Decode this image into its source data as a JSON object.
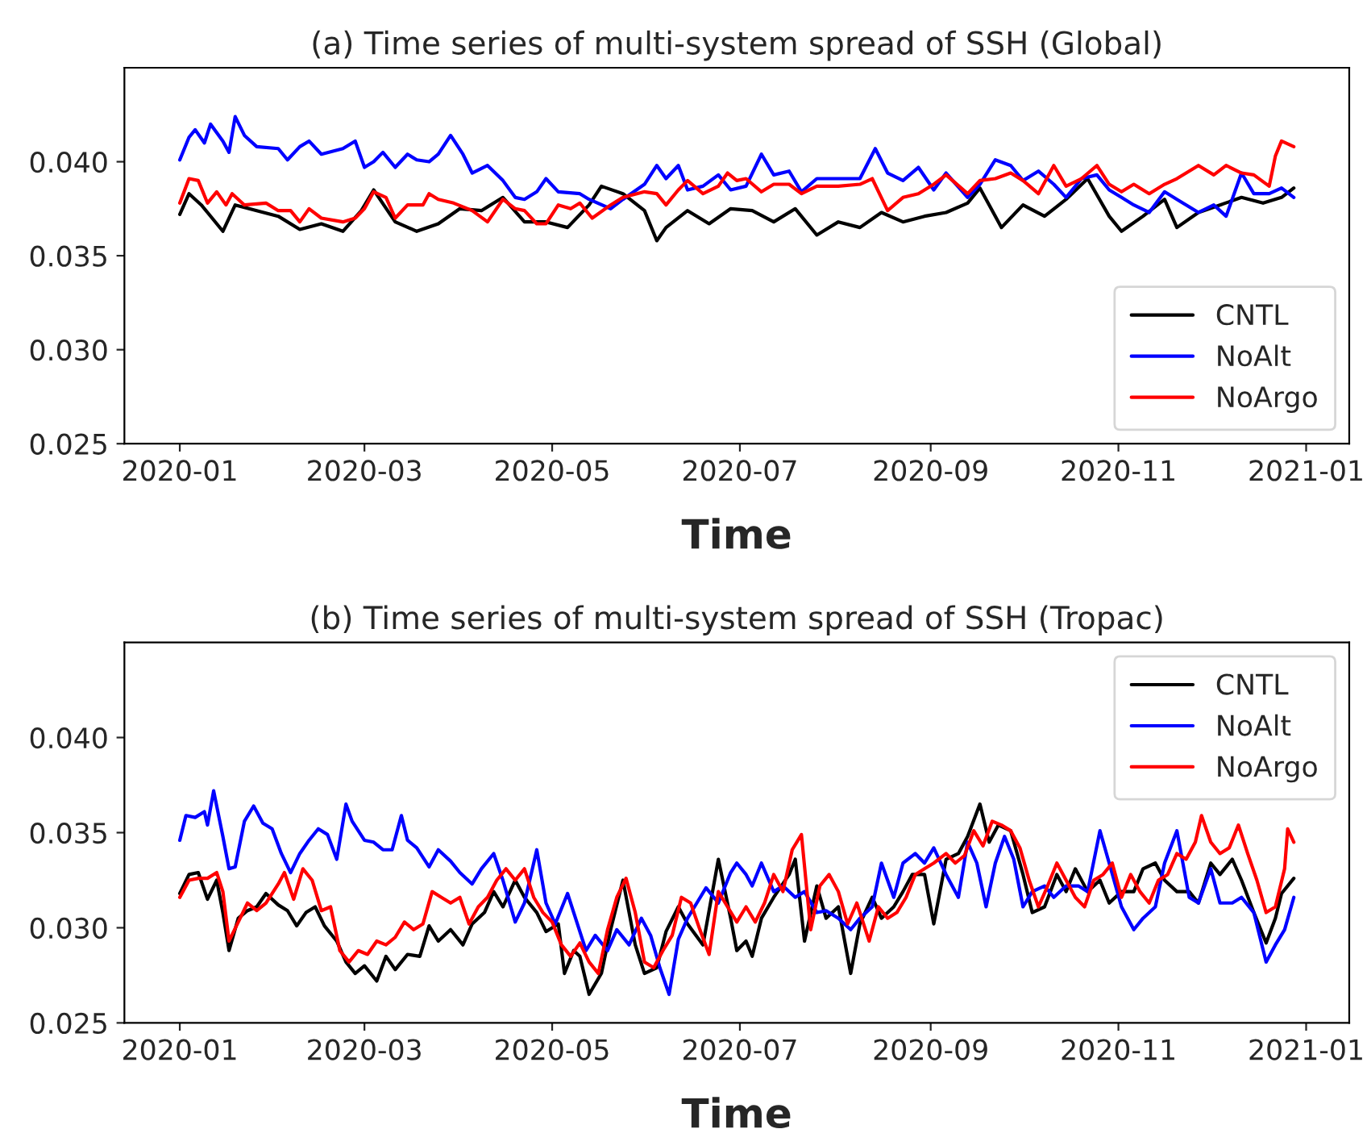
{
  "chart_data": [
    {
      "type": "line",
      "title": "(a) Time series of multi-system spread of SSH (Global)",
      "xlabel": "Time",
      "xlim": [
        "2019-12-14",
        "2021-01-15"
      ],
      "xticks": [
        "2020-01",
        "2020-03",
        "2020-05",
        "2020-07",
        "2020-09",
        "2020-11",
        "2021-01"
      ],
      "ylim": [
        0.025,
        0.045
      ],
      "yticks": [
        {
          "value": 0.025,
          "label": "0.025"
        },
        {
          "value": 0.03,
          "label": "0.030"
        },
        {
          "value": 0.035,
          "label": "0.035"
        },
        {
          "value": 0.04,
          "label": "0.040"
        }
      ],
      "legend": "lower right",
      "grid": false,
      "series": [
        {
          "name": "CNTL",
          "color": "#000000",
          "x": [
            "2020-01-01",
            "2020-01-04",
            "2020-01-08",
            "2020-01-15",
            "2020-01-19",
            "2020-01-26",
            "2020-02-02",
            "2020-02-09",
            "2020-02-16",
            "2020-02-23",
            "2020-02-29",
            "2020-03-04",
            "2020-03-11",
            "2020-03-18",
            "2020-03-25",
            "2020-04-01",
            "2020-04-08",
            "2020-04-15",
            "2020-04-22",
            "2020-04-29",
            "2020-05-06",
            "2020-05-13",
            "2020-05-17",
            "2020-05-24",
            "2020-05-31",
            "2020-06-04",
            "2020-06-07",
            "2020-06-14",
            "2020-06-21",
            "2020-06-28",
            "2020-07-05",
            "2020-07-12",
            "2020-07-19",
            "2020-07-26",
            "2020-08-02",
            "2020-08-09",
            "2020-08-16",
            "2020-08-23",
            "2020-08-30",
            "2020-09-06",
            "2020-09-13",
            "2020-09-17",
            "2020-09-24",
            "2020-10-01",
            "2020-10-08",
            "2020-10-15",
            "2020-10-22",
            "2020-10-29",
            "2020-11-02",
            "2020-11-09",
            "2020-11-16",
            "2020-11-20",
            "2020-11-27",
            "2020-12-04",
            "2020-12-11",
            "2020-12-18",
            "2020-12-24",
            "2020-12-28"
          ],
          "values": [
            0.0372,
            0.0383,
            0.0377,
            0.0363,
            0.0377,
            0.0374,
            0.0371,
            0.0364,
            0.0367,
            0.0363,
            0.0374,
            0.0385,
            0.0368,
            0.0363,
            0.0367,
            0.0375,
            0.0374,
            0.0381,
            0.0368,
            0.0368,
            0.0365,
            0.0377,
            0.0387,
            0.0383,
            0.0374,
            0.0358,
            0.0365,
            0.0374,
            0.0367,
            0.0375,
            0.0374,
            0.0368,
            0.0375,
            0.0361,
            0.0368,
            0.0365,
            0.0373,
            0.0368,
            0.0371,
            0.0373,
            0.0378,
            0.0386,
            0.0365,
            0.0377,
            0.0371,
            0.038,
            0.0391,
            0.0371,
            0.0363,
            0.0371,
            0.038,
            0.0365,
            0.0373,
            0.0377,
            0.0381,
            0.0378,
            0.0381,
            0.0386
          ]
        },
        {
          "name": "NoAlt",
          "color": "#0000ff",
          "x": [
            "2020-01-01",
            "2020-01-04",
            "2020-01-06",
            "2020-01-09",
            "2020-01-11",
            "2020-01-15",
            "2020-01-17",
            "2020-01-19",
            "2020-01-22",
            "2020-01-26",
            "2020-02-02",
            "2020-02-05",
            "2020-02-09",
            "2020-02-12",
            "2020-02-16",
            "2020-02-23",
            "2020-02-27",
            "2020-03-01",
            "2020-03-04",
            "2020-03-07",
            "2020-03-11",
            "2020-03-15",
            "2020-03-18",
            "2020-03-22",
            "2020-03-25",
            "2020-03-29",
            "2020-04-02",
            "2020-04-05",
            "2020-04-10",
            "2020-04-15",
            "2020-04-19",
            "2020-04-22",
            "2020-04-26",
            "2020-04-29",
            "2020-05-03",
            "2020-05-10",
            "2020-05-13",
            "2020-05-20",
            "2020-05-24",
            "2020-05-31",
            "2020-06-04",
            "2020-06-07",
            "2020-06-11",
            "2020-06-14",
            "2020-06-19",
            "2020-06-24",
            "2020-06-28",
            "2020-07-03",
            "2020-07-08",
            "2020-07-12",
            "2020-07-17",
            "2020-07-21",
            "2020-07-26",
            "2020-08-02",
            "2020-08-09",
            "2020-08-14",
            "2020-08-18",
            "2020-08-23",
            "2020-08-28",
            "2020-09-02",
            "2020-09-06",
            "2020-09-13",
            "2020-09-17",
            "2020-09-22",
            "2020-09-27",
            "2020-10-01",
            "2020-10-06",
            "2020-10-11",
            "2020-10-15",
            "2020-10-20",
            "2020-10-25",
            "2020-10-29",
            "2020-11-02",
            "2020-11-06",
            "2020-11-11",
            "2020-11-16",
            "2020-11-20",
            "2020-11-27",
            "2020-12-02",
            "2020-12-06",
            "2020-12-11",
            "2020-12-15",
            "2020-12-20",
            "2020-12-24",
            "2020-12-28"
          ],
          "values": [
            0.0401,
            0.0413,
            0.0417,
            0.041,
            0.042,
            0.0411,
            0.0405,
            0.0424,
            0.0414,
            0.0408,
            0.0407,
            0.0401,
            0.0408,
            0.0411,
            0.0404,
            0.0407,
            0.0411,
            0.0397,
            0.04,
            0.0405,
            0.0397,
            0.0404,
            0.0401,
            0.04,
            0.0404,
            0.0414,
            0.0404,
            0.0394,
            0.0398,
            0.039,
            0.0381,
            0.038,
            0.0384,
            0.0391,
            0.0384,
            0.0383,
            0.038,
            0.0375,
            0.038,
            0.0388,
            0.0398,
            0.0391,
            0.0398,
            0.0385,
            0.0387,
            0.0393,
            0.0385,
            0.0387,
            0.0404,
            0.0393,
            0.0395,
            0.0384,
            0.0391,
            0.0391,
            0.0391,
            0.0407,
            0.0394,
            0.039,
            0.0397,
            0.0385,
            0.0394,
            0.0381,
            0.0388,
            0.0401,
            0.0398,
            0.039,
            0.0395,
            0.0388,
            0.0381,
            0.0391,
            0.0393,
            0.0385,
            0.0381,
            0.0377,
            0.0373,
            0.0384,
            0.038,
            0.0373,
            0.0377,
            0.0371,
            0.0394,
            0.0383,
            0.0383,
            0.0386,
            0.0381
          ]
        },
        {
          "name": "NoArgo",
          "color": "#ff0000",
          "x": [
            "2020-01-01",
            "2020-01-04",
            "2020-01-07",
            "2020-01-10",
            "2020-01-13",
            "2020-01-16",
            "2020-01-18",
            "2020-01-22",
            "2020-01-29",
            "2020-02-02",
            "2020-02-06",
            "2020-02-09",
            "2020-02-12",
            "2020-02-16",
            "2020-02-23",
            "2020-02-27",
            "2020-03-01",
            "2020-03-04",
            "2020-03-08",
            "2020-03-11",
            "2020-03-15",
            "2020-03-20",
            "2020-03-22",
            "2020-03-25",
            "2020-03-30",
            "2020-04-05",
            "2020-04-10",
            "2020-04-15",
            "2020-04-19",
            "2020-04-22",
            "2020-04-26",
            "2020-04-29",
            "2020-05-03",
            "2020-05-07",
            "2020-05-10",
            "2020-05-14",
            "2020-05-20",
            "2020-05-24",
            "2020-05-31",
            "2020-06-04",
            "2020-06-07",
            "2020-06-11",
            "2020-06-14",
            "2020-06-19",
            "2020-06-24",
            "2020-06-27",
            "2020-06-30",
            "2020-07-03",
            "2020-07-08",
            "2020-07-12",
            "2020-07-17",
            "2020-07-21",
            "2020-07-26",
            "2020-08-02",
            "2020-08-09",
            "2020-08-13",
            "2020-08-18",
            "2020-08-23",
            "2020-08-28",
            "2020-09-02",
            "2020-09-06",
            "2020-09-13",
            "2020-09-17",
            "2020-09-22",
            "2020-09-27",
            "2020-10-01",
            "2020-10-06",
            "2020-10-11",
            "2020-10-15",
            "2020-10-20",
            "2020-10-25",
            "2020-10-29",
            "2020-11-02",
            "2020-11-06",
            "2020-11-11",
            "2020-11-16",
            "2020-11-20",
            "2020-11-27",
            "2020-12-02",
            "2020-12-06",
            "2020-12-11",
            "2020-12-15",
            "2020-12-20",
            "2020-12-22",
            "2020-12-24",
            "2020-12-28"
          ],
          "values": [
            0.0378,
            0.0391,
            0.039,
            0.0378,
            0.0384,
            0.0377,
            0.0383,
            0.0377,
            0.0378,
            0.0374,
            0.0374,
            0.0368,
            0.0375,
            0.037,
            0.0368,
            0.037,
            0.0375,
            0.0384,
            0.0381,
            0.037,
            0.0377,
            0.0377,
            0.0383,
            0.038,
            0.0378,
            0.0374,
            0.0368,
            0.038,
            0.0375,
            0.0374,
            0.0367,
            0.0367,
            0.0377,
            0.0375,
            0.0378,
            0.037,
            0.0377,
            0.0381,
            0.0384,
            0.0383,
            0.0377,
            0.0385,
            0.039,
            0.0383,
            0.0387,
            0.0394,
            0.039,
            0.0391,
            0.0384,
            0.0388,
            0.0388,
            0.0383,
            0.0387,
            0.0387,
            0.0388,
            0.0391,
            0.0374,
            0.0381,
            0.0383,
            0.0388,
            0.0393,
            0.0383,
            0.039,
            0.0391,
            0.0394,
            0.039,
            0.0383,
            0.0398,
            0.0387,
            0.0391,
            0.0398,
            0.0388,
            0.0384,
            0.0388,
            0.0383,
            0.0388,
            0.0391,
            0.0398,
            0.0393,
            0.0398,
            0.0394,
            0.0393,
            0.0387,
            0.0403,
            0.0411,
            0.0408
          ]
        }
      ]
    },
    {
      "type": "line",
      "title": "(b) Time series of multi-system spread of SSH (Tropac)",
      "xlabel": "Time",
      "xlim": [
        "2019-12-14",
        "2021-01-15"
      ],
      "xticks": [
        "2020-01",
        "2020-03",
        "2020-05",
        "2020-07",
        "2020-09",
        "2020-11",
        "2021-01"
      ],
      "ylim": [
        0.025,
        0.045
      ],
      "yticks": [
        {
          "value": 0.025,
          "label": "0.025"
        },
        {
          "value": 0.03,
          "label": "0.030"
        },
        {
          "value": 0.035,
          "label": "0.035"
        },
        {
          "value": 0.04,
          "label": "0.040"
        }
      ],
      "legend": "upper right",
      "grid": false,
      "series": [
        {
          "name": "CNTL",
          "color": "#000000",
          "x": [
            "2020-01-01",
            "2020-01-04",
            "2020-01-07",
            "2020-01-10",
            "2020-01-13",
            "2020-01-15",
            "2020-01-17",
            "2020-01-20",
            "2020-01-23",
            "2020-01-26",
            "2020-01-29",
            "2020-02-02",
            "2020-02-05",
            "2020-02-08",
            "2020-02-11",
            "2020-02-14",
            "2020-02-17",
            "2020-02-21",
            "2020-02-24",
            "2020-02-27",
            "2020-03-01",
            "2020-03-05",
            "2020-03-08",
            "2020-03-11",
            "2020-03-15",
            "2020-03-19",
            "2020-03-22",
            "2020-03-25",
            "2020-03-29",
            "2020-04-02",
            "2020-04-05",
            "2020-04-09",
            "2020-04-12",
            "2020-04-15",
            "2020-04-19",
            "2020-04-22",
            "2020-04-26",
            "2020-04-29",
            "2020-05-03",
            "2020-05-05",
            "2020-05-08",
            "2020-05-10",
            "2020-05-13",
            "2020-05-17",
            "2020-05-20",
            "2020-05-24",
            "2020-05-28",
            "2020-05-31",
            "2020-06-04",
            "2020-06-07",
            "2020-06-11",
            "2020-06-14",
            "2020-06-19",
            "2020-06-24",
            "2020-06-28",
            "2020-06-30",
            "2020-07-03",
            "2020-07-05",
            "2020-07-08",
            "2020-07-12",
            "2020-07-17",
            "2020-07-19",
            "2020-07-22",
            "2020-07-26",
            "2020-07-29",
            "2020-08-02",
            "2020-08-06",
            "2020-08-09",
            "2020-08-13",
            "2020-08-16",
            "2020-08-20",
            "2020-08-23",
            "2020-08-26",
            "2020-08-30",
            "2020-09-02",
            "2020-09-06",
            "2020-09-10",
            "2020-09-13",
            "2020-09-17",
            "2020-09-20",
            "2020-09-23",
            "2020-09-27",
            "2020-10-01",
            "2020-10-04",
            "2020-10-08",
            "2020-10-12",
            "2020-10-15",
            "2020-10-18",
            "2020-10-22",
            "2020-10-26",
            "2020-10-29",
            "2020-11-02",
            "2020-11-06",
            "2020-11-09",
            "2020-11-13",
            "2020-11-16",
            "2020-11-20",
            "2020-11-24",
            "2020-11-27",
            "2020-12-01",
            "2020-12-04",
            "2020-12-08",
            "2020-12-11",
            "2020-12-15",
            "2020-12-19",
            "2020-12-22",
            "2020-12-24",
            "2020-12-28"
          ],
          "values": [
            0.0318,
            0.0328,
            0.0329,
            0.0315,
            0.0325,
            0.0308,
            0.0288,
            0.0305,
            0.0309,
            0.0311,
            0.0318,
            0.0312,
            0.0309,
            0.0301,
            0.0308,
            0.0311,
            0.0301,
            0.0293,
            0.0282,
            0.0276,
            0.028,
            0.0272,
            0.0285,
            0.0278,
            0.0286,
            0.0285,
            0.0301,
            0.0293,
            0.0299,
            0.0291,
            0.0302,
            0.0308,
            0.0319,
            0.0311,
            0.0325,
            0.0316,
            0.0308,
            0.0298,
            0.0302,
            0.0276,
            0.0288,
            0.0285,
            0.0265,
            0.0276,
            0.0299,
            0.0325,
            0.0291,
            0.0276,
            0.0279,
            0.0298,
            0.0311,
            0.0302,
            0.0291,
            0.0336,
            0.0305,
            0.0288,
            0.0293,
            0.0285,
            0.0305,
            0.0316,
            0.0328,
            0.0336,
            0.0293,
            0.0322,
            0.0305,
            0.0311,
            0.0276,
            0.0302,
            0.0316,
            0.0305,
            0.0311,
            0.0319,
            0.0328,
            0.0328,
            0.0302,
            0.0336,
            0.0339,
            0.0348,
            0.0365,
            0.0345,
            0.0354,
            0.0351,
            0.0328,
            0.0308,
            0.0311,
            0.0328,
            0.0319,
            0.0331,
            0.0319,
            0.0325,
            0.0313,
            0.0319,
            0.0319,
            0.0331,
            0.0334,
            0.0325,
            0.0319,
            0.0319,
            0.0313,
            0.0334,
            0.0328,
            0.0336,
            0.0325,
            0.0308,
            0.0292,
            0.0305,
            0.0318,
            0.0326
          ]
        },
        {
          "name": "NoAlt",
          "color": "#0000ff",
          "x": [
            "2020-01-01",
            "2020-01-03",
            "2020-01-06",
            "2020-01-09",
            "2020-01-10",
            "2020-01-12",
            "2020-01-15",
            "2020-01-17",
            "2020-01-19",
            "2020-01-22",
            "2020-01-25",
            "2020-01-28",
            "2020-01-31",
            "2020-02-03",
            "2020-02-06",
            "2020-02-09",
            "2020-02-12",
            "2020-02-15",
            "2020-02-18",
            "2020-02-21",
            "2020-02-24",
            "2020-02-26",
            "2020-03-01",
            "2020-03-04",
            "2020-03-07",
            "2020-03-10",
            "2020-03-13",
            "2020-03-15",
            "2020-03-18",
            "2020-03-22",
            "2020-03-25",
            "2020-03-29",
            "2020-04-01",
            "2020-04-05",
            "2020-04-08",
            "2020-04-12",
            "2020-04-15",
            "2020-04-19",
            "2020-04-22",
            "2020-04-26",
            "2020-04-29",
            "2020-05-02",
            "2020-05-06",
            "2020-05-09",
            "2020-05-12",
            "2020-05-15",
            "2020-05-19",
            "2020-05-22",
            "2020-05-26",
            "2020-05-30",
            "2020-06-02",
            "2020-06-05",
            "2020-06-08",
            "2020-06-11",
            "2020-06-14",
            "2020-06-17",
            "2020-06-20",
            "2020-06-24",
            "2020-06-28",
            "2020-06-30",
            "2020-07-03",
            "2020-07-05",
            "2020-07-08",
            "2020-07-12",
            "2020-07-15",
            "2020-07-19",
            "2020-07-22",
            "2020-07-26",
            "2020-07-29",
            "2020-08-02",
            "2020-08-06",
            "2020-08-09",
            "2020-08-13",
            "2020-08-16",
            "2020-08-20",
            "2020-08-23",
            "2020-08-27",
            "2020-08-30",
            "2020-09-02",
            "2020-09-06",
            "2020-09-10",
            "2020-09-13",
            "2020-09-16",
            "2020-09-19",
            "2020-09-22",
            "2020-09-25",
            "2020-09-28",
            "2020-10-01",
            "2020-10-04",
            "2020-10-08",
            "2020-10-11",
            "2020-10-15",
            "2020-10-19",
            "2020-10-22",
            "2020-10-26",
            "2020-10-29",
            "2020-11-02",
            "2020-11-06",
            "2020-11-09",
            "2020-11-13",
            "2020-11-16",
            "2020-11-20",
            "2020-11-24",
            "2020-11-27",
            "2020-12-01",
            "2020-12-04",
            "2020-12-08",
            "2020-12-11",
            "2020-12-15",
            "2020-12-19",
            "2020-12-22",
            "2020-12-25",
            "2020-12-28"
          ],
          "values": [
            0.0346,
            0.0359,
            0.0358,
            0.0361,
            0.0354,
            0.0372,
            0.0348,
            0.0331,
            0.0332,
            0.0356,
            0.0364,
            0.0355,
            0.0352,
            0.0339,
            0.0329,
            0.0339,
            0.0346,
            0.0352,
            0.0349,
            0.0336,
            0.0365,
            0.0356,
            0.0346,
            0.0345,
            0.0341,
            0.0341,
            0.0359,
            0.0346,
            0.0342,
            0.0332,
            0.0341,
            0.0335,
            0.0329,
            0.0323,
            0.0331,
            0.0339,
            0.0325,
            0.0303,
            0.0313,
            0.0341,
            0.0313,
            0.0302,
            0.0318,
            0.0303,
            0.0288,
            0.0296,
            0.0288,
            0.0299,
            0.0291,
            0.0305,
            0.0296,
            0.0279,
            0.0265,
            0.0294,
            0.0305,
            0.0313,
            0.0321,
            0.0313,
            0.0329,
            0.0334,
            0.0328,
            0.0322,
            0.0334,
            0.0319,
            0.0322,
            0.0316,
            0.0319,
            0.0308,
            0.0309,
            0.0305,
            0.0299,
            0.0305,
            0.0311,
            0.0334,
            0.0316,
            0.0334,
            0.0339,
            0.0334,
            0.0342,
            0.0328,
            0.0316,
            0.0345,
            0.0334,
            0.0311,
            0.0334,
            0.0348,
            0.0336,
            0.0311,
            0.0319,
            0.0322,
            0.0316,
            0.0322,
            0.0322,
            0.0319,
            0.0351,
            0.0334,
            0.0311,
            0.0299,
            0.0305,
            0.0311,
            0.0334,
            0.0351,
            0.0316,
            0.0313,
            0.0331,
            0.0313,
            0.0313,
            0.0316,
            0.0308,
            0.0282,
            0.0291,
            0.0299,
            0.0316
          ]
        },
        {
          "name": "NoArgo",
          "color": "#ff0000",
          "x": [
            "2020-01-01",
            "2020-01-04",
            "2020-01-07",
            "2020-01-10",
            "2020-01-13",
            "2020-01-15",
            "2020-01-17",
            "2020-01-20",
            "2020-01-23",
            "2020-01-26",
            "2020-01-29",
            "2020-02-02",
            "2020-02-04",
            "2020-02-07",
            "2020-02-10",
            "2020-02-13",
            "2020-02-16",
            "2020-02-19",
            "2020-02-22",
            "2020-02-25",
            "2020-02-28",
            "2020-03-02",
            "2020-03-05",
            "2020-03-08",
            "2020-03-11",
            "2020-03-14",
            "2020-03-17",
            "2020-03-20",
            "2020-03-23",
            "2020-03-26",
            "2020-03-29",
            "2020-04-01",
            "2020-04-04",
            "2020-04-07",
            "2020-04-10",
            "2020-04-13",
            "2020-04-16",
            "2020-04-19",
            "2020-04-22",
            "2020-04-25",
            "2020-04-28",
            "2020-05-01",
            "2020-05-04",
            "2020-05-07",
            "2020-05-10",
            "2020-05-13",
            "2020-05-16",
            "2020-05-19",
            "2020-05-22",
            "2020-05-25",
            "2020-05-28",
            "2020-05-31",
            "2020-06-03",
            "2020-06-06",
            "2020-06-09",
            "2020-06-12",
            "2020-06-15",
            "2020-06-18",
            "2020-06-21",
            "2020-06-24",
            "2020-06-27",
            "2020-06-30",
            "2020-07-03",
            "2020-07-06",
            "2020-07-09",
            "2020-07-12",
            "2020-07-15",
            "2020-07-18",
            "2020-07-21",
            "2020-07-24",
            "2020-07-27",
            "2020-07-30",
            "2020-08-02",
            "2020-08-05",
            "2020-08-08",
            "2020-08-12",
            "2020-08-15",
            "2020-08-18",
            "2020-08-21",
            "2020-08-24",
            "2020-08-27",
            "2020-08-30",
            "2020-09-02",
            "2020-09-06",
            "2020-09-09",
            "2020-09-12",
            "2020-09-15",
            "2020-09-18",
            "2020-09-21",
            "2020-09-24",
            "2020-09-27",
            "2020-09-30",
            "2020-10-03",
            "2020-10-06",
            "2020-10-09",
            "2020-10-12",
            "2020-10-15",
            "2020-10-18",
            "2020-10-21",
            "2020-10-24",
            "2020-10-27",
            "2020-10-30",
            "2020-11-02",
            "2020-11-05",
            "2020-11-08",
            "2020-11-11",
            "2020-11-14",
            "2020-11-17",
            "2020-11-20",
            "2020-11-23",
            "2020-11-26",
            "2020-11-28",
            "2020-12-01",
            "2020-12-04",
            "2020-12-07",
            "2020-12-10",
            "2020-12-13",
            "2020-12-16",
            "2020-12-19",
            "2020-12-22",
            "2020-12-25",
            "2020-12-26",
            "2020-12-28"
          ],
          "values": [
            0.0316,
            0.0325,
            0.0326,
            0.0326,
            0.0329,
            0.0319,
            0.0293,
            0.0303,
            0.0313,
            0.0309,
            0.0313,
            0.0323,
            0.0329,
            0.0315,
            0.0331,
            0.0325,
            0.0309,
            0.0311,
            0.0288,
            0.0282,
            0.0288,
            0.0286,
            0.0293,
            0.0291,
            0.0295,
            0.0303,
            0.0299,
            0.0302,
            0.0319,
            0.0316,
            0.0313,
            0.0316,
            0.0302,
            0.0311,
            0.0316,
            0.0325,
            0.0331,
            0.0325,
            0.0331,
            0.0316,
            0.0308,
            0.0303,
            0.0291,
            0.0285,
            0.0292,
            0.0282,
            0.0276,
            0.0299,
            0.0316,
            0.0326,
            0.0308,
            0.0282,
            0.0279,
            0.0288,
            0.0296,
            0.0316,
            0.0313,
            0.0299,
            0.0286,
            0.0319,
            0.0311,
            0.0303,
            0.0311,
            0.0303,
            0.0313,
            0.0328,
            0.0319,
            0.0341,
            0.0349,
            0.0299,
            0.0322,
            0.0328,
            0.0319,
            0.0302,
            0.0313,
            0.0293,
            0.0311,
            0.0305,
            0.0308,
            0.0316,
            0.0328,
            0.0331,
            0.0334,
            0.0339,
            0.0334,
            0.0338,
            0.0351,
            0.0343,
            0.0356,
            0.0354,
            0.0351,
            0.0342,
            0.0325,
            0.0311,
            0.0322,
            0.0334,
            0.0325,
            0.0316,
            0.0311,
            0.0325,
            0.0328,
            0.0334,
            0.0316,
            0.0328,
            0.0319,
            0.0313,
            0.0325,
            0.0328,
            0.0339,
            0.0336,
            0.0345,
            0.0359,
            0.0345,
            0.0339,
            0.0342,
            0.0354,
            0.0339,
            0.0325,
            0.0308,
            0.0311,
            0.0331,
            0.0352,
            0.0345
          ]
        }
      ]
    }
  ]
}
